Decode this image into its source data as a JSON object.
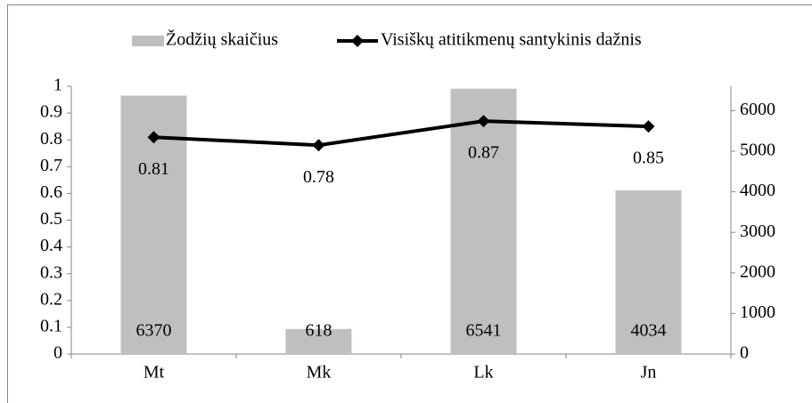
{
  "chart_data": {
    "type": "bar",
    "categories": [
      "Mt",
      "Mk",
      "Lk",
      "Jn"
    ],
    "series": [
      {
        "name": "Žodžių skaičius",
        "color": "#bfbfbf",
        "axis": "y2",
        "values": [
          6370,
          618,
          6541,
          4034
        ]
      },
      {
        "name": "Visiškų atitikmenų santykinis dažnis",
        "color": "#000000",
        "type": "line",
        "values": [
          0.81,
          0.78,
          0.87,
          0.85
        ]
      }
    ],
    "ylim": [
      0,
      1
    ],
    "yticks": [
      0,
      0.1,
      0.2,
      0.3,
      0.4,
      0.5,
      0.6,
      0.7,
      0.8,
      0.9,
      1
    ],
    "y2lim": [
      0,
      6600
    ],
    "y2ticks": [
      0,
      1000,
      2000,
      3000,
      4000,
      5000,
      6000
    ],
    "legend": "top"
  }
}
